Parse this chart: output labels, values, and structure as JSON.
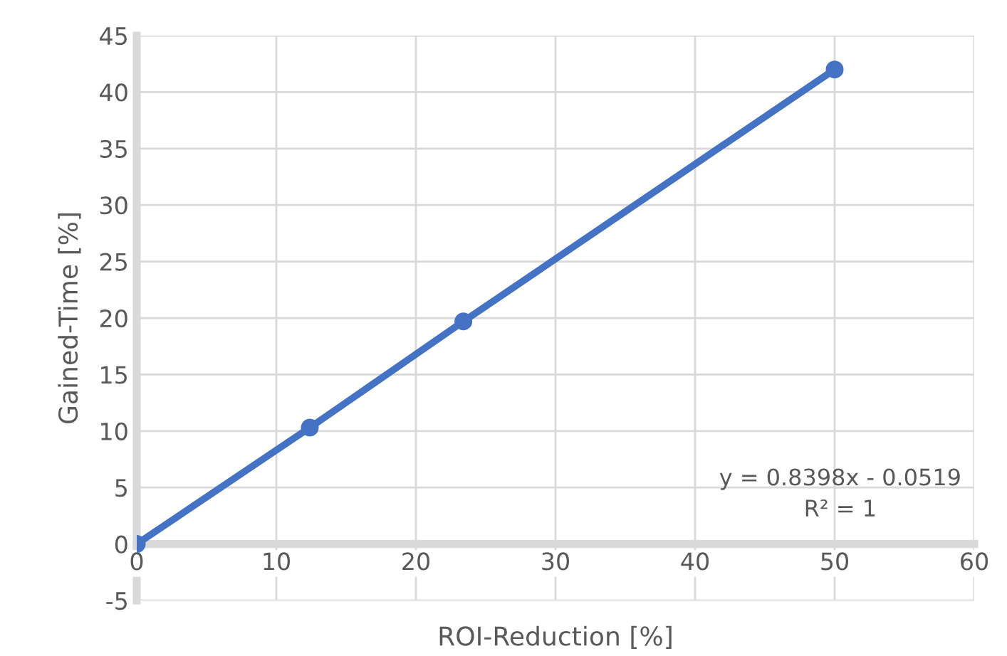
{
  "chart_data": {
    "type": "line",
    "xlabel": "ROI-Reduction [%]",
    "ylabel": "Gained-Time [%]",
    "x": [
      0,
      12.4,
      23.4,
      50
    ],
    "series": [
      {
        "color": "#4472c4",
        "values": [
          0,
          10.3,
          19.7,
          42
        ]
      }
    ],
    "xlim": [
      0,
      60
    ],
    "xticks": [
      0,
      10,
      20,
      30,
      40,
      50,
      60
    ],
    "ylim": [
      -5,
      45
    ],
    "yticks": [
      -5,
      0,
      5,
      10,
      15,
      20,
      25,
      30,
      35,
      40,
      45
    ],
    "grid": true,
    "marker": "circle",
    "line_style": "solid",
    "annotations": [
      "y = 0.8398x - 0.0519",
      "R² = 1"
    ]
  }
}
